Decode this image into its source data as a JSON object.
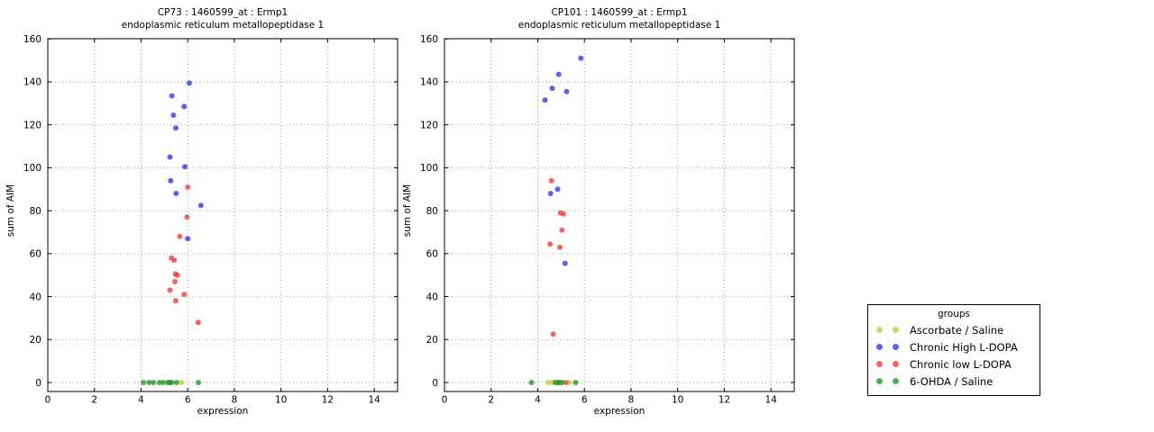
{
  "figure": {
    "background": "#ffffff",
    "text_color": "#000000",
    "grid_color": "#999999"
  },
  "legend": {
    "title": "groups",
    "position": "right"
  },
  "groups": [
    {
      "name": "Ascorbate / Saline",
      "color": "#c9c937"
    },
    {
      "name": "Chronic High L-DOPA",
      "color": "#3939e0"
    },
    {
      "name": "Chronic low L-DOPA",
      "color": "#ee4040"
    },
    {
      "name": "6-OHDA / Saline",
      "color": "#2a962a"
    }
  ],
  "chart_data": [
    {
      "type": "scatter",
      "title_line1": "CP73 : 1460599_at : Ermp1",
      "title_line2": "endoplasmic reticulum metallopeptidase 1",
      "xlabel": "expression",
      "ylabel": "sum of AIM",
      "xlim": [
        0,
        15
      ],
      "ylim": [
        0,
        160
      ],
      "xticks": [
        0,
        2,
        4,
        6,
        8,
        10,
        12,
        14
      ],
      "yticks": [
        0,
        20,
        40,
        60,
        80,
        100,
        120,
        140,
        160
      ],
      "grid": true,
      "series": [
        {
          "group": "Ascorbate / Saline",
          "points": [
            [
              5.73,
              0
            ]
          ]
        },
        {
          "group": "Chronic High L-DOPA",
          "points": [
            [
              6.07,
              139.5
            ],
            [
              5.32,
              133.5
            ],
            [
              5.85,
              128.5
            ],
            [
              5.39,
              124.5
            ],
            [
              5.49,
              118.5
            ],
            [
              5.24,
              105
            ],
            [
              5.88,
              100.5
            ],
            [
              5.27,
              94
            ],
            [
              5.5,
              88
            ],
            [
              6.57,
              82.5
            ],
            [
              6.0,
              67
            ]
          ]
        },
        {
          "group": "Chronic low L-DOPA",
          "points": [
            [
              6.0,
              91
            ],
            [
              5.97,
              77
            ],
            [
              5.66,
              68
            ],
            [
              5.3,
              58
            ],
            [
              5.42,
              57
            ],
            [
              5.47,
              50.5
            ],
            [
              5.56,
              50
            ],
            [
              5.45,
              47
            ],
            [
              5.24,
              43
            ],
            [
              5.85,
              41
            ],
            [
              5.49,
              38
            ],
            [
              6.45,
              28
            ]
          ]
        },
        {
          "group": "6-OHDA / Saline",
          "points": [
            [
              4.1,
              0
            ],
            [
              4.34,
              0
            ],
            [
              4.53,
              0
            ],
            [
              4.79,
              0
            ],
            [
              4.95,
              0
            ],
            [
              5.15,
              0
            ],
            [
              5.23,
              0
            ],
            [
              5.31,
              0
            ],
            [
              5.52,
              0
            ],
            [
              6.46,
              0
            ]
          ]
        }
      ]
    },
    {
      "type": "scatter",
      "title_line1": "CP101 : 1460599_at : Ermp1",
      "title_line2": "endoplasmic reticulum metallopeptidase 1",
      "xlabel": "expression",
      "ylabel": "sum of AIM",
      "xlim": [
        0,
        15
      ],
      "ylim": [
        0,
        160
      ],
      "xticks": [
        0,
        2,
        4,
        6,
        8,
        10,
        12,
        14
      ],
      "yticks": [
        0,
        20,
        40,
        60,
        80,
        100,
        120,
        140,
        160
      ],
      "grid": true,
      "series": [
        {
          "group": "Ascorbate / Saline",
          "points": [
            [
              4.44,
              0
            ],
            [
              4.62,
              0
            ],
            [
              5.35,
              0
            ]
          ]
        },
        {
          "group": "Chronic High L-DOPA",
          "points": [
            [
              5.85,
              151
            ],
            [
              4.9,
              143.5
            ],
            [
              4.62,
              137
            ],
            [
              5.24,
              135.5
            ],
            [
              4.31,
              131.5
            ],
            [
              4.85,
              90
            ],
            [
              4.55,
              88
            ],
            [
              5.17,
              55.5
            ]
          ]
        },
        {
          "group": "Chronic low L-DOPA",
          "points": [
            [
              4.59,
              94
            ],
            [
              4.97,
              79
            ],
            [
              5.1,
              78.5
            ],
            [
              5.04,
              71
            ],
            [
              4.53,
              64.5
            ],
            [
              4.95,
              63
            ],
            [
              4.66,
              22.5
            ],
            [
              5.2,
              0
            ]
          ]
        },
        {
          "group": "6-OHDA / Saline",
          "points": [
            [
              3.73,
              0
            ],
            [
              4.75,
              0
            ],
            [
              4.85,
              0
            ],
            [
              4.93,
              0
            ],
            [
              5.02,
              0
            ],
            [
              5.62,
              0
            ]
          ]
        }
      ]
    }
  ]
}
